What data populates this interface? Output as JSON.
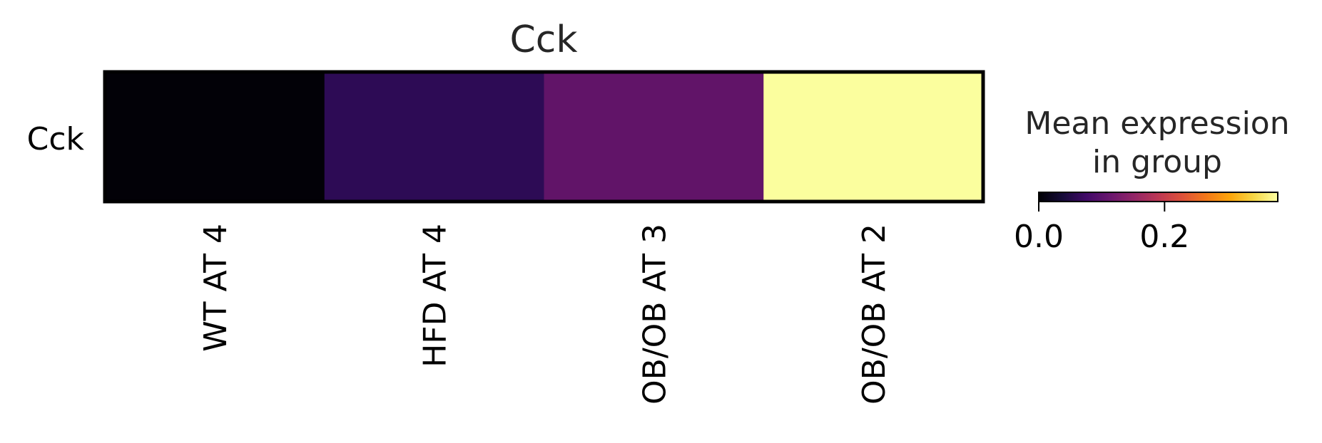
{
  "chart_data": {
    "type": "heatmap",
    "title": "Cck",
    "rows": [
      "Cck"
    ],
    "columns": [
      "WT AT 4",
      "HFD AT 4",
      "OB/OB AT 3",
      "OB/OB AT 2"
    ],
    "values": [
      [
        0.0,
        0.06,
        0.13,
        0.38
      ]
    ],
    "colormap": "inferno",
    "colorbar": {
      "title_lines": [
        "Mean expression",
        "in group"
      ],
      "range": [
        0.0,
        0.38
      ],
      "ticks": [
        0.0,
        0.2
      ],
      "tick_labels": [
        "0.0",
        "0.2"
      ],
      "placement": "right"
    },
    "cell_colors": [
      "#020107",
      "#2d0b55",
      "#611468",
      "#fbfe9e"
    ],
    "grid": false
  }
}
